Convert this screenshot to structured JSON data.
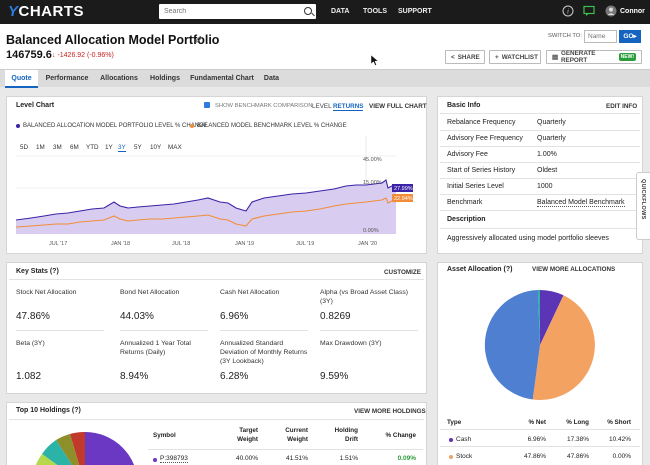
{
  "topbar": {
    "logo_y": "Y",
    "logo_text": "CHARTS",
    "search_placeholder": "Search",
    "nav": [
      "DATA",
      "TOOLS",
      "SUPPORT"
    ],
    "user": "Connor"
  },
  "header": {
    "title": "Balanced Allocation Model Portfolio",
    "price": "146759.6",
    "change": "↓ -1426.92 (-0.96%)",
    "switch_label": "SWITCH TO:",
    "name_placeholder": "Name",
    "go": "GO▸",
    "share": "SHARE",
    "watchlist": "WATCHLIST",
    "generate": "GENERATE REPORT",
    "new": "NEW!"
  },
  "tabs": [
    "Quote",
    "Performance",
    "Allocations",
    "Holdings",
    "Fundamental Chart",
    "Data"
  ],
  "level_chart": {
    "title": "Level Chart",
    "benchmark_toggle": "SHOW BENCHMARK COMPARISON",
    "level": "LEVEL",
    "returns": "RETURNS",
    "view_full": "VIEW FULL CHART",
    "legend": [
      "BALANCED ALLOCATION MODEL PORTFOLIO LEVEL % CHANGE",
      "BALANCED MODEL BENCHMARK LEVEL % CHANGE"
    ],
    "ranges": [
      "5D",
      "1M",
      "3M",
      "6M",
      "YTD",
      "1Y",
      "3Y",
      "5Y",
      "10Y",
      "MAX"
    ],
    "active_range": "3Y",
    "x_labels": [
      "JUL '17",
      "JAN '18",
      "JUL '18",
      "JAN '19",
      "JUL '19",
      "JAN '20"
    ],
    "y_labels": [
      "45.00%",
      "15.00%",
      "0.00%"
    ],
    "badge_portfolio": "27.99%",
    "badge_benchmark": "22.94%",
    "colors": {
      "portfolio": "#3b22a6",
      "benchmark": "#f28c38",
      "fill": "#d8cdf0"
    }
  },
  "basic_info": {
    "title": "Basic Info",
    "edit": "EDIT INFO",
    "rows": [
      [
        "Rebalance Frequency",
        "Quarterly"
      ],
      [
        "Advisory Fee Frequency",
        "Quarterly"
      ],
      [
        "Advisory Fee",
        "1.00%"
      ],
      [
        "Start of Series History",
        "Oldest"
      ],
      [
        "Initial Series Level",
        "1000"
      ],
      [
        "Benchmark",
        "Balanced Model Benchmark"
      ]
    ],
    "description_title": "Description",
    "description": "Aggressively allocated using model portfolio sleeves"
  },
  "key_stats": {
    "title": "Key Stats (?)",
    "customize": "CUSTOMIZE",
    "items": [
      [
        "Stock Net Allocation",
        "47.86%"
      ],
      [
        "Bond Net Allocation",
        "44.03%"
      ],
      [
        "Cash Net Allocation",
        "6.96%"
      ],
      [
        "Alpha (vs Broad Asset Class) (3Y)",
        "0.8269"
      ],
      [
        "Beta (3Y)",
        "1.082"
      ],
      [
        "Annualized 1 Year Total Returns (Daily)",
        "8.94%"
      ],
      [
        "Annualized Standard Deviation of Monthly Returns (3Y Lookback)",
        "6.28%"
      ],
      [
        "Max Drawdown (3Y)",
        "9.59%"
      ]
    ]
  },
  "asset_allocation": {
    "title": "Asset Allocation (?)",
    "view_more": "VIEW MORE ALLOCATIONS",
    "table_headers": [
      "Type",
      "% Net",
      "% Long",
      "% Short"
    ],
    "rows": [
      [
        "Cash",
        "6.96%",
        "17.38%",
        "10.42%"
      ],
      [
        "Stock",
        "47.86%",
        "47.86%",
        "0.00%"
      ]
    ],
    "slice_colors": {
      "cash": "#5b35b5",
      "stock": "#f4a261",
      "bond": "#4e7fd0",
      "other": "#2bb3a8"
    }
  },
  "top_holdings": {
    "title": "Top 10 Holdings (?)",
    "view_more": "VIEW MORE HOLDINGS",
    "headers": [
      "Symbol",
      "Target Weight",
      "Current Weight",
      "Holding Drift",
      "% Change"
    ],
    "row": [
      "P:398793",
      "40.00%",
      "41.51%",
      "1.51%",
      "0.09%"
    ]
  },
  "quickflows": "QUICKFLOWS"
}
